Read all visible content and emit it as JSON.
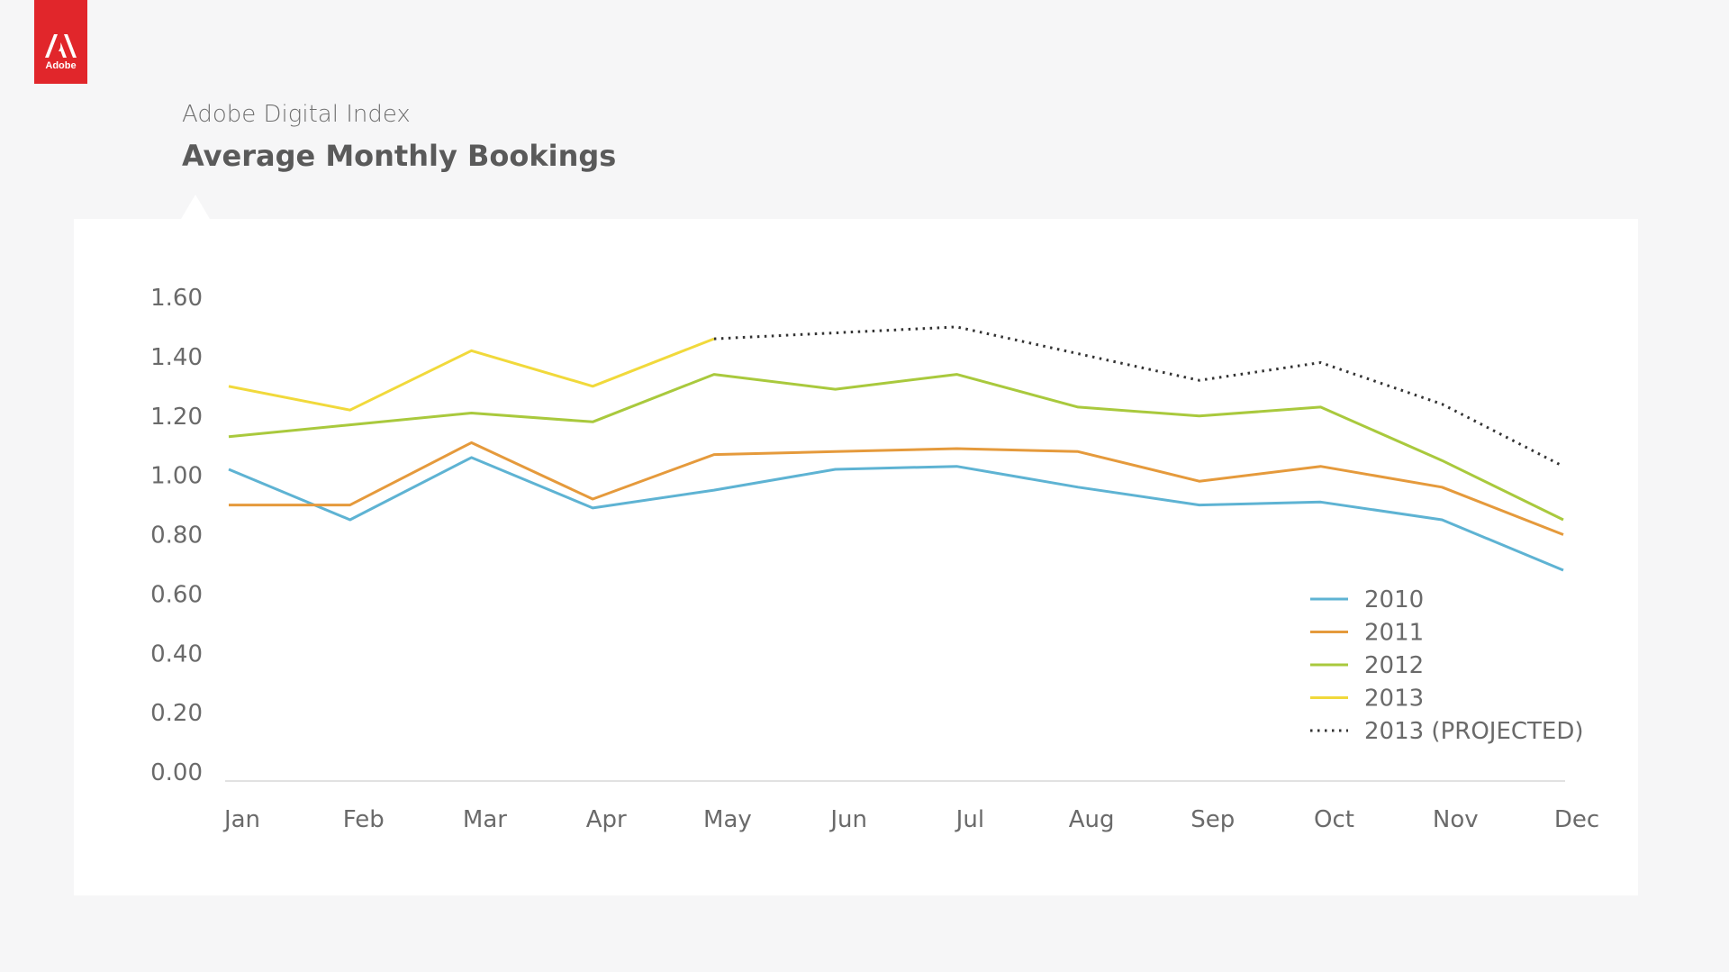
{
  "brand": {
    "name": "Adobe",
    "color": "#e1262b",
    "icon": "adobe-logo-icon"
  },
  "header": {
    "subtitle": "Adobe Digital Index",
    "title": "Average Monthly Bookings"
  },
  "chart_data": {
    "type": "line",
    "title": "Average Monthly Bookings",
    "xlabel": "",
    "ylabel": "",
    "categories": [
      "Jan",
      "Feb",
      "Mar",
      "Apr",
      "May",
      "Jun",
      "Jul",
      "Aug",
      "Sep",
      "Oct",
      "Nov",
      "Dec"
    ],
    "yticks": [
      "0.00",
      "0.20",
      "0.40",
      "0.60",
      "0.80",
      "1.00",
      "1.20",
      "1.40",
      "1.60"
    ],
    "ylim": [
      0,
      1.6
    ],
    "grid": false,
    "legend_position": "bottom-right",
    "series": [
      {
        "name": "2010",
        "color": "#5eb3d3",
        "style": "solid",
        "values": [
          1.02,
          0.85,
          1.06,
          0.89,
          0.95,
          1.02,
          1.03,
          0.96,
          0.9,
          0.91,
          0.85,
          0.68
        ]
      },
      {
        "name": "2011",
        "color": "#e59a3c",
        "style": "solid",
        "values": [
          0.9,
          0.9,
          1.11,
          0.92,
          1.07,
          1.08,
          1.09,
          1.08,
          0.98,
          1.03,
          0.96,
          0.8
        ]
      },
      {
        "name": "2012",
        "color": "#a9c93d",
        "style": "solid",
        "values": [
          1.13,
          1.17,
          1.21,
          1.18,
          1.34,
          1.29,
          1.34,
          1.23,
          1.2,
          1.23,
          1.05,
          0.85
        ]
      },
      {
        "name": "2013",
        "color": "#f1d93b",
        "style": "solid",
        "values": [
          1.3,
          1.22,
          1.42,
          1.3,
          1.46,
          null,
          null,
          null,
          null,
          null,
          null,
          null
        ]
      },
      {
        "name": "2013 (PROJECTED)",
        "color": "#333333",
        "style": "dotted",
        "values": [
          null,
          null,
          null,
          null,
          1.46,
          1.48,
          1.5,
          1.41,
          1.32,
          1.38,
          1.24,
          1.03
        ]
      }
    ]
  }
}
